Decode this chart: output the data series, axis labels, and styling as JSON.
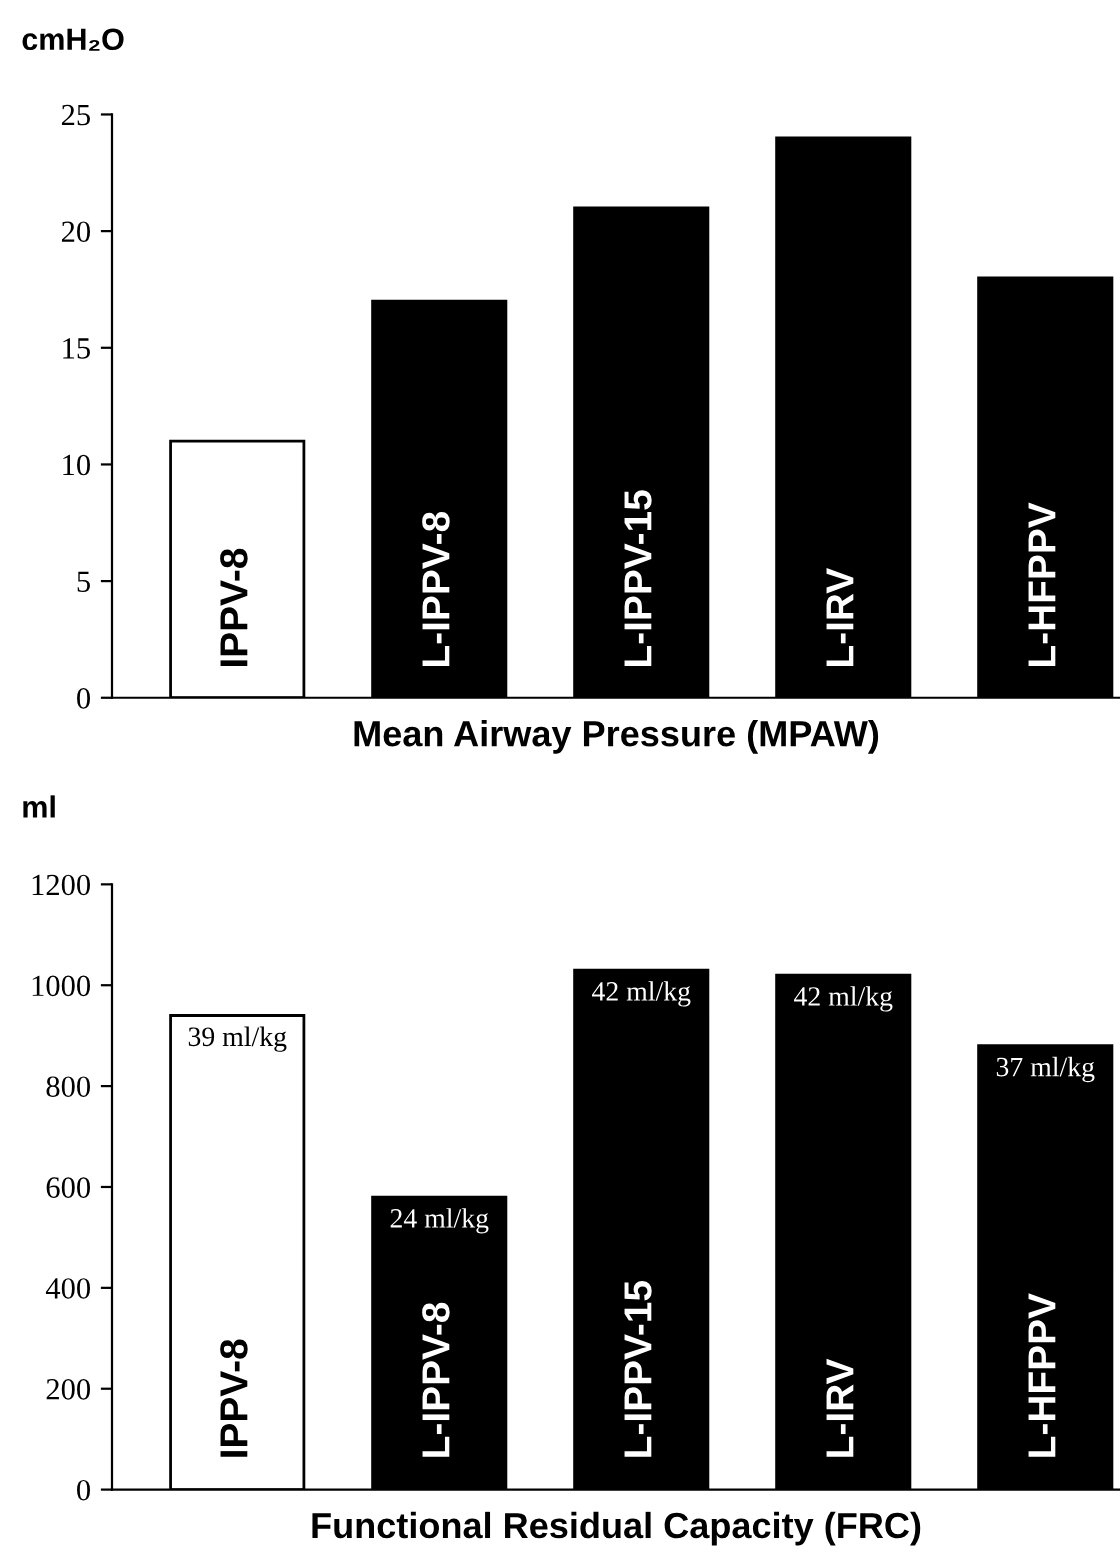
{
  "chart_data": [
    {
      "type": "bar",
      "xlabel": "Mean Airway Pressure (MPAW)",
      "ylabel": "cmH₂O",
      "categories": [
        "IPPV-8",
        "L-IPPV-8",
        "L-IPPV-15",
        "L-IRV",
        "L-HFPPV"
      ],
      "values": [
        11,
        17,
        21,
        24,
        18
      ],
      "colors": [
        "#ffffff",
        "#000000",
        "#000000",
        "#000000",
        "#000000"
      ],
      "ylim": [
        0,
        25
      ],
      "yticks": [
        0,
        5,
        10,
        15,
        20,
        25
      ],
      "grid": false
    },
    {
      "type": "bar",
      "xlabel": "Functional Residual Capacity (FRC)",
      "ylabel": "ml",
      "categories": [
        "IPPV-8",
        "L-IPPV-8",
        "L-IPPV-15",
        "L-IRV",
        "L-HFPPV"
      ],
      "values": [
        940,
        580,
        1030,
        1020,
        880
      ],
      "annotations": [
        {
          "text": "39 ml/kg",
          "x": "IPPV-8",
          "y": 940
        },
        {
          "text": "24 ml/kg",
          "x": "L-IPPV-8",
          "y": 580
        },
        {
          "text": "42 ml/kg",
          "x": "L-IPPV-15",
          "y": 1030
        },
        {
          "text": "42 ml/kg",
          "x": "L-IRV",
          "y": 1020
        },
        {
          "text": "37 ml/kg",
          "x": "L-HFPPV",
          "y": 880
        }
      ],
      "colors": [
        "#ffffff",
        "#000000",
        "#000000",
        "#000000",
        "#000000"
      ],
      "ylim": [
        0,
        1200
      ],
      "yticks": [
        0,
        200,
        400,
        600,
        800,
        1000,
        1200
      ],
      "grid": false
    }
  ]
}
